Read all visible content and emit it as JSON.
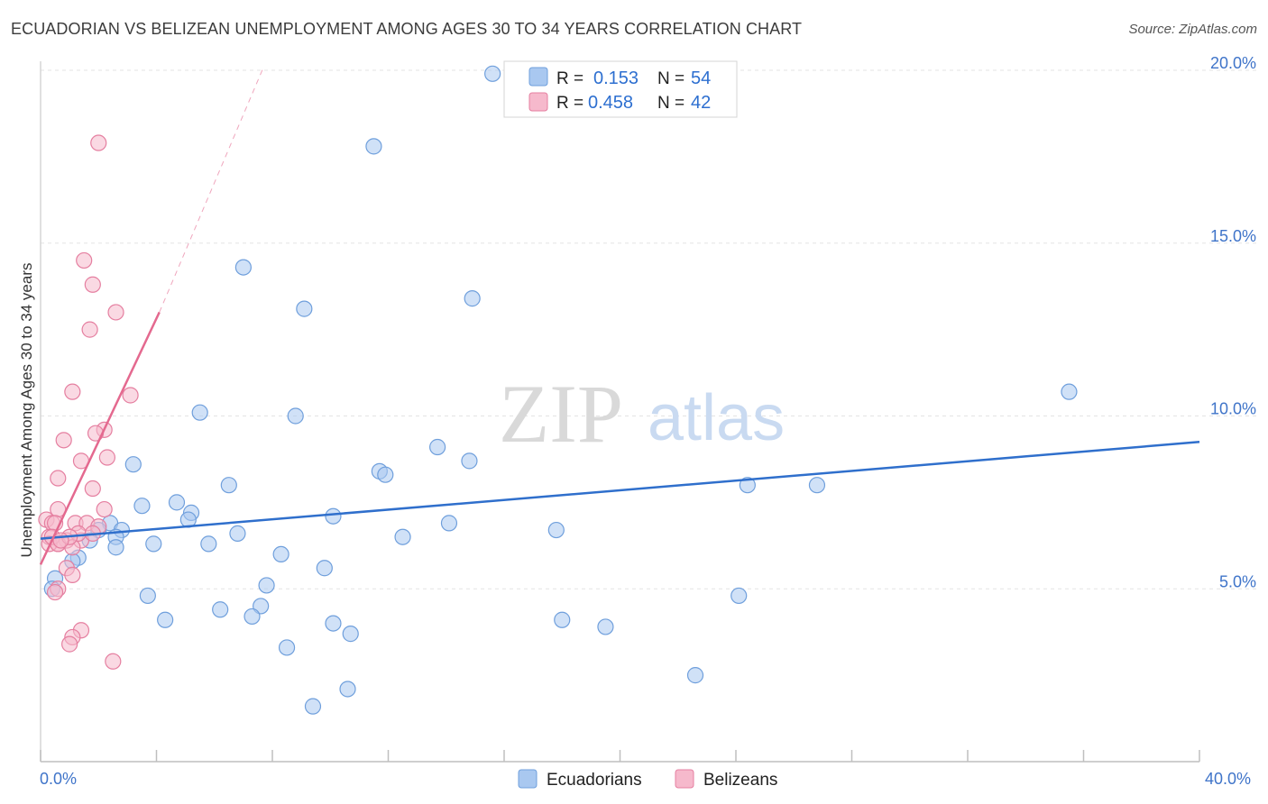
{
  "header": {
    "title": "ECUADORIAN VS BELIZEAN UNEMPLOYMENT AMONG AGES 30 TO 34 YEARS CORRELATION CHART",
    "source": "Source: ZipAtlas.com"
  },
  "watermark": {
    "zip": "ZIP",
    "atlas": "atlas"
  },
  "stats_legend": [
    {
      "r_label": "R =",
      "r_value": "0.153",
      "n_label": "N =",
      "n_value": "54"
    },
    {
      "r_label": "R =",
      "r_value": "0.458",
      "n_label": "N =",
      "n_value": "42"
    }
  ],
  "chart_data": {
    "type": "scatter",
    "title": "ECUADORIAN VS BELIZEAN UNEMPLOYMENT AMONG AGES 30 TO 34 YEARS CORRELATION CHART",
    "xlabel": "",
    "ylabel": "Unemployment Among Ages 30 to 34 years",
    "xlim": [
      0,
      40
    ],
    "ylim": [
      0,
      20
    ],
    "x_tick_labels": [
      "0.0%",
      "40.0%"
    ],
    "y_ticks": [
      5,
      10,
      15,
      20
    ],
    "y_tick_labels": [
      "5.0%",
      "10.0%",
      "15.0%",
      "20.0%"
    ],
    "grid": true,
    "legend_position": "bottom",
    "series": [
      {
        "name": "Ecuadorians",
        "color": "#a9c8f0",
        "stroke": "#6f9fdc",
        "line_color": "#2f6fcc",
        "trend": {
          "x0": 0,
          "y0": 6.45,
          "x1": 40,
          "y1": 9.25
        },
        "points": [
          [
            15.6,
            19.9
          ],
          [
            11.5,
            17.8
          ],
          [
            7.0,
            14.3
          ],
          [
            14.9,
            13.4
          ],
          [
            9.1,
            13.1
          ],
          [
            35.5,
            10.7
          ],
          [
            5.5,
            10.1
          ],
          [
            8.8,
            10.0
          ],
          [
            13.7,
            9.1
          ],
          [
            3.2,
            8.6
          ],
          [
            14.8,
            8.7
          ],
          [
            11.7,
            8.4
          ],
          [
            11.9,
            8.3
          ],
          [
            6.5,
            8.0
          ],
          [
            24.4,
            8.0
          ],
          [
            26.8,
            8.0
          ],
          [
            3.5,
            7.4
          ],
          [
            4.7,
            7.5
          ],
          [
            5.2,
            7.2
          ],
          [
            5.1,
            7.0
          ],
          [
            10.1,
            7.1
          ],
          [
            14.1,
            6.9
          ],
          [
            2.4,
            6.9
          ],
          [
            2.0,
            6.7
          ],
          [
            2.8,
            6.7
          ],
          [
            17.8,
            6.7
          ],
          [
            6.8,
            6.6
          ],
          [
            3.9,
            6.3
          ],
          [
            1.7,
            6.4
          ],
          [
            2.6,
            6.5
          ],
          [
            12.5,
            6.5
          ],
          [
            2.6,
            6.2
          ],
          [
            5.8,
            6.3
          ],
          [
            8.3,
            6.0
          ],
          [
            1.3,
            5.9
          ],
          [
            1.1,
            5.8
          ],
          [
            9.8,
            5.6
          ],
          [
            0.5,
            5.3
          ],
          [
            0.4,
            5.0
          ],
          [
            7.8,
            5.1
          ],
          [
            3.7,
            4.8
          ],
          [
            24.1,
            4.8
          ],
          [
            7.6,
            4.5
          ],
          [
            6.2,
            4.4
          ],
          [
            4.3,
            4.1
          ],
          [
            7.3,
            4.2
          ],
          [
            18.0,
            4.1
          ],
          [
            10.1,
            4.0
          ],
          [
            19.5,
            3.9
          ],
          [
            10.7,
            3.7
          ],
          [
            8.5,
            3.3
          ],
          [
            22.6,
            2.5
          ],
          [
            10.6,
            2.1
          ],
          [
            9.4,
            1.6
          ]
        ]
      },
      {
        "name": "Belizeans",
        "color": "#f6b9cc",
        "stroke": "#e57fa0",
        "line_color": "#e4698f",
        "trend": {
          "x0": 0,
          "y0": 5.7,
          "x1": 4.1,
          "y1": 13.0
        },
        "trend_extension": {
          "x0": 4.1,
          "y0": 13.0,
          "x1": 7.7,
          "y1": 20.1
        },
        "points": [
          [
            2.0,
            17.9
          ],
          [
            1.5,
            14.5
          ],
          [
            1.8,
            13.8
          ],
          [
            2.6,
            13.0
          ],
          [
            1.7,
            12.5
          ],
          [
            1.1,
            10.7
          ],
          [
            3.1,
            10.6
          ],
          [
            2.2,
            9.6
          ],
          [
            1.9,
            9.5
          ],
          [
            0.8,
            9.3
          ],
          [
            1.4,
            8.7
          ],
          [
            2.3,
            8.8
          ],
          [
            0.6,
            8.2
          ],
          [
            1.8,
            7.9
          ],
          [
            0.6,
            7.3
          ],
          [
            2.2,
            7.3
          ],
          [
            0.2,
            7.0
          ],
          [
            0.4,
            6.9
          ],
          [
            0.5,
            6.9
          ],
          [
            1.2,
            6.9
          ],
          [
            1.6,
            6.9
          ],
          [
            2.0,
            6.8
          ],
          [
            0.3,
            6.5
          ],
          [
            0.9,
            6.4
          ],
          [
            1.4,
            6.4
          ],
          [
            0.6,
            6.3
          ],
          [
            0.3,
            6.3
          ],
          [
            1.1,
            6.2
          ],
          [
            0.4,
            6.5
          ],
          [
            1.3,
            6.6
          ],
          [
            0.6,
            6.3
          ],
          [
            1.0,
            6.5
          ],
          [
            1.8,
            6.6
          ],
          [
            0.7,
            6.4
          ],
          [
            0.9,
            5.6
          ],
          [
            1.1,
            5.4
          ],
          [
            0.6,
            5.0
          ],
          [
            0.5,
            4.9
          ],
          [
            1.4,
            3.8
          ],
          [
            1.1,
            3.6
          ],
          [
            1.0,
            3.4
          ],
          [
            2.5,
            2.9
          ]
        ]
      }
    ]
  }
}
